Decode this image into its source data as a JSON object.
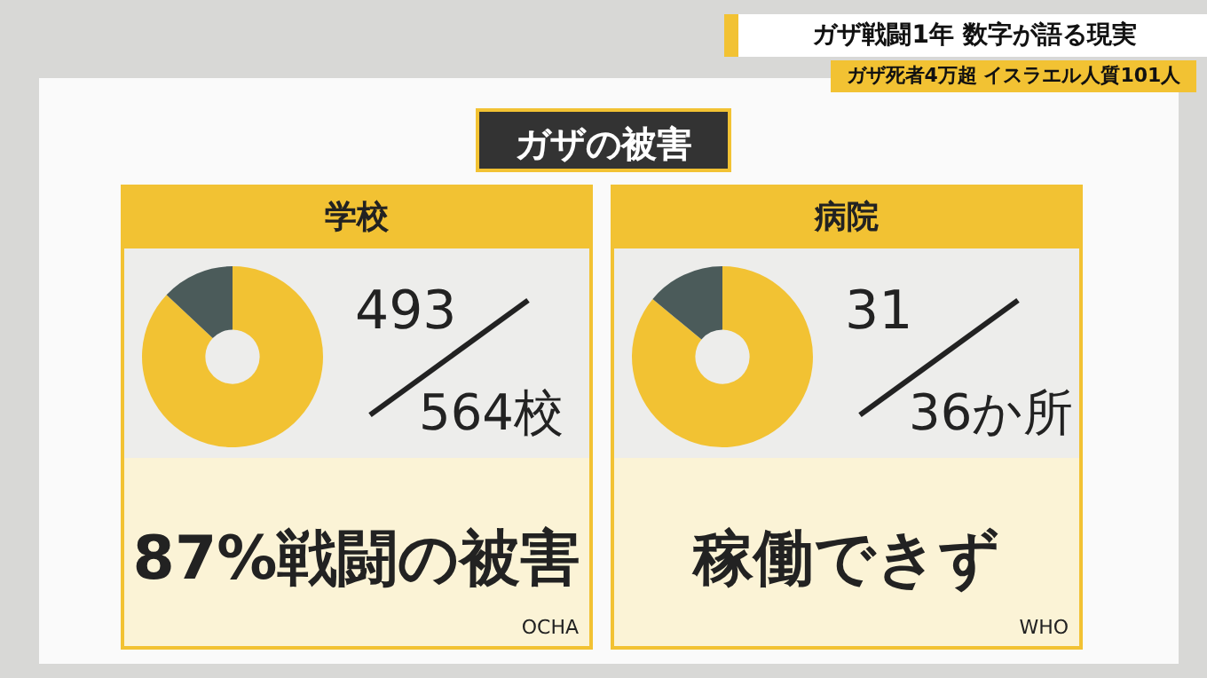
{
  "chart_data": [
    {
      "type": "other",
      "title": "ガザ戦闘1年 数字が語る現実",
      "subtitle": "ガザ死者4万超 イスラエル人質101人",
      "annotations": [
        "ガザの被害"
      ]
    },
    {
      "type": "donut",
      "title": "学校",
      "categories": [
        null,
        null
      ],
      "values": [
        87,
        13
      ],
      "colors": [
        "#f2c233",
        "#4b5b5a"
      ],
      "annotations": [
        "493",
        "564校",
        "87%戦闘の被害",
        "OCHA"
      ]
    },
    {
      "type": "donut",
      "title": "病院",
      "categories": [
        null,
        null
      ],
      "values": [
        86,
        14
      ],
      "colors": [
        "#f2c233",
        "#4b5b5a"
      ],
      "annotations": [
        "31",
        "36か所",
        "稼働できず",
        "WHO"
      ]
    }
  ]
}
